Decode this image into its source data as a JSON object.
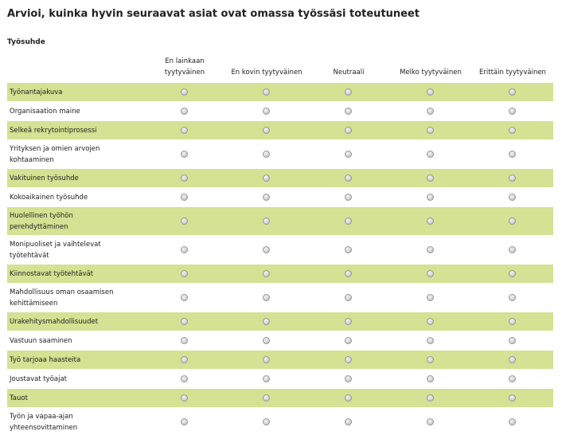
{
  "question": {
    "title": "Arvioi, kuinka hyvin seuraavat asiat ovat omassa työssäsi toteutuneet",
    "section": "Työsuhde"
  },
  "columns": [
    {
      "line1": "En lainkaan",
      "line2": "tyytyväinen"
    },
    {
      "line1": "",
      "line2": "En kovin tyytyväinen"
    },
    {
      "line1": "",
      "line2": "Neutraali"
    },
    {
      "line1": "",
      "line2": "Melko tyytyväinen"
    },
    {
      "line1": "",
      "line2": "Erittäin tyytyväinen"
    }
  ],
  "rows": [
    {
      "label": "Työnantajakuva",
      "shaded": true,
      "lines": 1,
      "selected": null
    },
    {
      "label": "Organisaation maine",
      "shaded": false,
      "lines": 1,
      "selected": null
    },
    {
      "label": "Selkeä rekrytointiprosessi",
      "shaded": true,
      "lines": 1,
      "selected": null
    },
    {
      "label": "Yrityksen ja omien arvojen kohtaaminen",
      "shaded": false,
      "lines": 2,
      "selected": null
    },
    {
      "label": "Vakituinen työsuhde",
      "shaded": true,
      "lines": 1,
      "selected": null
    },
    {
      "label": "Kokoaikainen työsuhde",
      "shaded": false,
      "lines": 1,
      "selected": null
    },
    {
      "label": "Huolellinen työhön perehdyttäminen",
      "shaded": true,
      "lines": 2,
      "selected": null
    },
    {
      "label": "Monipuoliset ja vaihtelevat työtehtävät",
      "shaded": false,
      "lines": 2,
      "selected": null
    },
    {
      "label": "Kiinnostavat työtehtävät",
      "shaded": true,
      "lines": 1,
      "selected": null
    },
    {
      "label": "Mahdollisuus oman osaamisen kehittämiseen",
      "shaded": false,
      "lines": 2,
      "selected": null
    },
    {
      "label": "Urakehitysmahdollisuudet",
      "shaded": true,
      "lines": 1,
      "selected": null
    },
    {
      "label": "Vastuun saaminen",
      "shaded": false,
      "lines": 1,
      "selected": null
    },
    {
      "label": "Työ tarjoaa haasteita",
      "shaded": true,
      "lines": 1,
      "selected": null
    },
    {
      "label": "Joustavat työajat",
      "shaded": false,
      "lines": 1,
      "selected": null
    },
    {
      "label": "Tauot",
      "shaded": true,
      "lines": 1,
      "selected": null
    },
    {
      "label": "Työn ja vapaa-ajan yhteensovittaminen",
      "shaded": false,
      "lines": 2,
      "selected": null
    }
  ],
  "colors": {
    "row_shade": "#d5e193",
    "row_plain": "#ffffff",
    "text": "#222222"
  },
  "icons": {
    "radio": "radio-button-unselected"
  }
}
